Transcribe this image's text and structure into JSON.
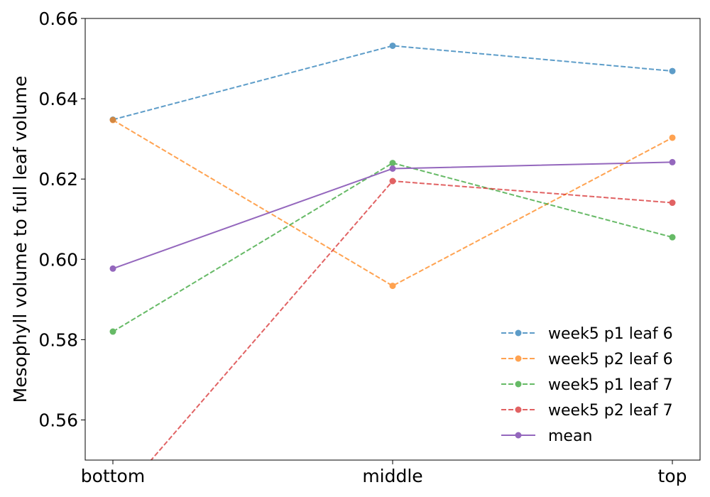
{
  "chart_data": {
    "type": "line",
    "title": "",
    "xlabel": "",
    "ylabel": "Mesophyll volume to full leaf volume",
    "categories": [
      "bottom",
      "middle",
      "top"
    ],
    "ylim": [
      0.55,
      0.66
    ],
    "yticks": [
      "0.56",
      "0.58",
      "0.60",
      "0.62",
      "0.64",
      "0.66"
    ],
    "grid": false,
    "legend_position": "lower-right",
    "series": [
      {
        "name": "week5 p1 leaf 6",
        "values": [
          0.6348,
          0.6532,
          0.6469
        ],
        "color": "#1f77b4",
        "style": "dashed"
      },
      {
        "name": "week5 p2 leaf 6",
        "values": [
          0.6347,
          0.5934,
          0.6303
        ],
        "color": "#ff7f0e",
        "style": "dashed"
      },
      {
        "name": "week5 p1 leaf 7",
        "values": [
          0.582,
          0.624,
          0.6055
        ],
        "color": "#2ca02c",
        "style": "dashed"
      },
      {
        "name": "week5 p2 leaf 7",
        "values": [
          0.539,
          0.6195,
          0.6141
        ],
        "color": "#d62728",
        "style": "dashed"
      },
      {
        "name": "mean",
        "values": [
          0.5977,
          0.6226,
          0.6242
        ],
        "color": "#9467bd",
        "style": "solid"
      }
    ]
  }
}
